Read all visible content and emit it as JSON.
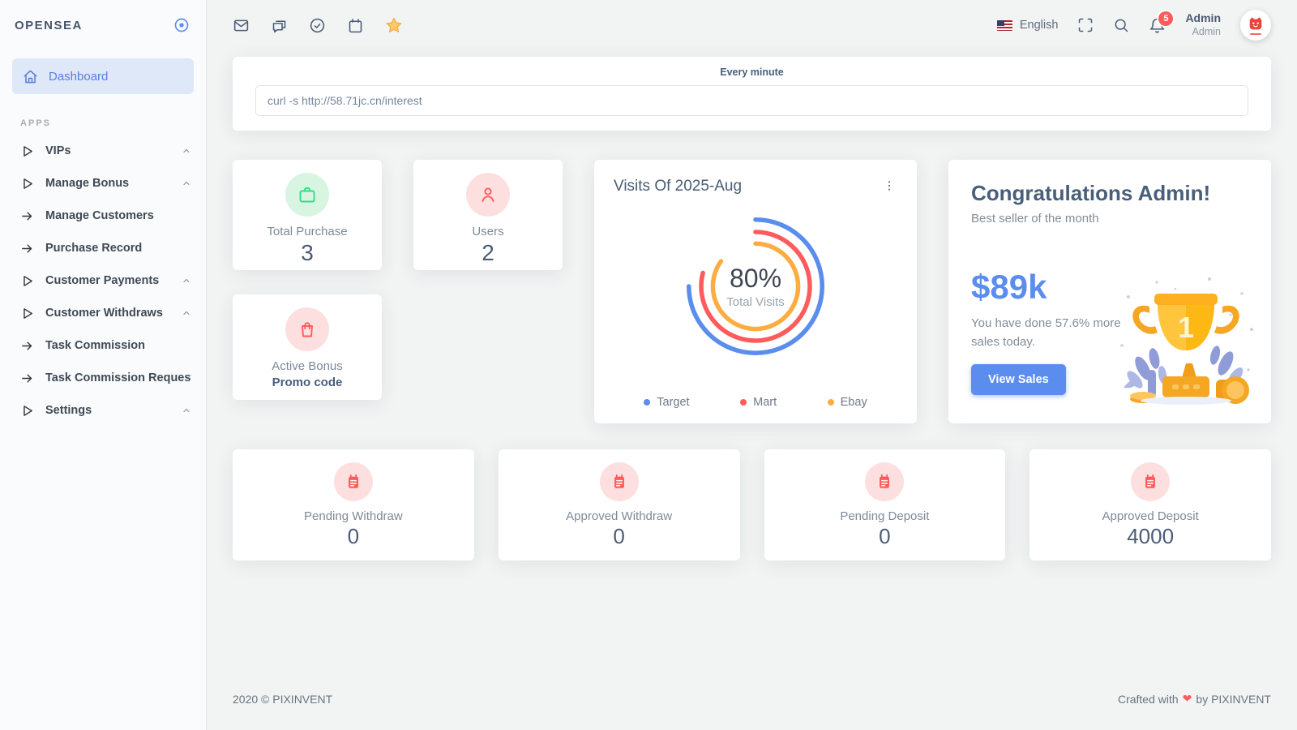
{
  "brand": {
    "name": "OPENSEA"
  },
  "sidebar": {
    "active": {
      "label": "Dashboard"
    },
    "section": "APPS",
    "items": [
      {
        "label": "VIPs"
      },
      {
        "label": "Manage Bonus"
      },
      {
        "label": "Manage Customers"
      },
      {
        "label": "Purchase Record"
      },
      {
        "label": "Customer Payments"
      },
      {
        "label": "Customer Withdraws"
      },
      {
        "label": "Task Commission"
      },
      {
        "label": "Task Commission Request"
      },
      {
        "label": "Settings"
      }
    ]
  },
  "topbar": {
    "language": "English",
    "notification_count": "5",
    "user": {
      "name": "Admin",
      "role": "Admin"
    }
  },
  "cron": {
    "title": "Every minute",
    "command": "curl -s http://58.71jc.cn/interest"
  },
  "stats": {
    "total_purchase": {
      "label": "Total Purchase",
      "value": "3"
    },
    "users": {
      "label": "Users",
      "value": "2"
    },
    "active_bonus": {
      "label": "Active Bonus",
      "sub": "Promo code"
    }
  },
  "chart_data": {
    "type": "radialBar",
    "title": "Visits Of 2025-Aug",
    "center_value": "80%",
    "center_label": "Total Visits",
    "legend_position": "bottom",
    "series": [
      {
        "name": "Target",
        "color": "#5a8dee",
        "percent": 75
      },
      {
        "name": "Mart",
        "color": "#ff5b5c",
        "percent": 79
      },
      {
        "name": "Ebay",
        "color": "#fdac41",
        "percent": 85
      }
    ]
  },
  "congrats": {
    "title": "Congratulations Admin!",
    "subtitle": "Best seller of the month",
    "amount": "$89k",
    "message": "You have done 57.6% more sales today.",
    "button": "View Sales"
  },
  "bottom_stats": [
    {
      "label": "Pending Withdraw",
      "value": "0"
    },
    {
      "label": "Approved Withdraw",
      "value": "0"
    },
    {
      "label": "Pending Deposit",
      "value": "0"
    },
    {
      "label": "Approved Deposit",
      "value": "4000"
    }
  ],
  "footer": {
    "left": "2020 © PIXINVENT",
    "right_prefix": "Crafted with",
    "right_suffix": "by PIXINVENT"
  },
  "colors": {
    "primary": "#5a8dee",
    "danger": "#ff5b5c",
    "warning": "#fdac41",
    "success": "#39da8a"
  }
}
